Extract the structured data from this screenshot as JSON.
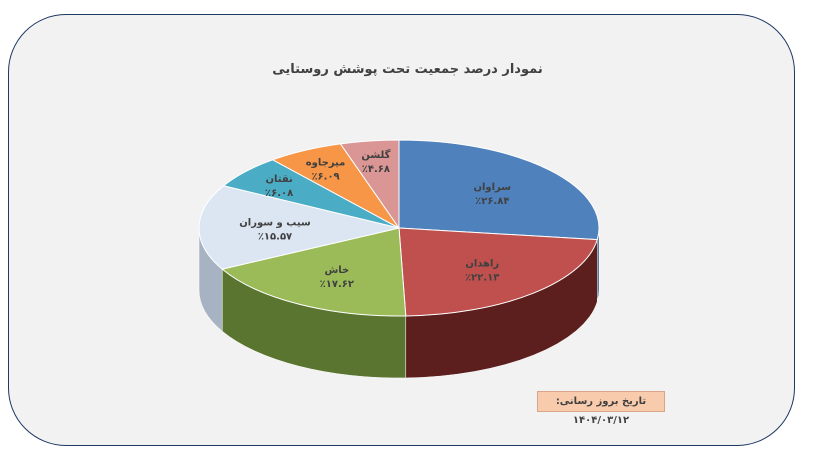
{
  "chart_data": {
    "type": "pie",
    "title": "نمودار درصد جمعیت تحت پوشش روستایی",
    "slices": [
      {
        "name": "سراوان",
        "value": 26.84,
        "label": "٪۲۶.۸۴",
        "color": "#4f81bd",
        "dark": "#2f4f78"
      },
      {
        "name": "زاهدان",
        "value": 22.13,
        "label": "٪۲۲.۱۳",
        "color": "#c0504d",
        "dark": "#5c1f1d"
      },
      {
        "name": "خاش",
        "value": 17.62,
        "label": "٪۱۷.۶۲",
        "color": "#9bbb59",
        "dark": "#5a7530"
      },
      {
        "name": "سیب و سوران",
        "value": 15.57,
        "label": "٪۱۵.۵۷",
        "color": "#dce6f2",
        "dark": "#a7b3c2"
      },
      {
        "name": "نقتان",
        "value": 6.08,
        "label": "٪۶.۰۸",
        "color": "#4bacc6",
        "dark": "#2b7184"
      },
      {
        "name": "میرجاوه",
        "value": 6.09,
        "label": "٪۶.۰۹",
        "color": "#f79646",
        "dark": "#b0601f"
      },
      {
        "name": "گلشن",
        "value": 4.68,
        "label": "٪۴.۶۸",
        "color": "#d99694",
        "dark": "#9a5755"
      }
    ],
    "legend": "none"
  },
  "footer": {
    "date_label": "تاریخ بروز رسانی: ۱۴۰۴/۰۳/۱۲"
  }
}
